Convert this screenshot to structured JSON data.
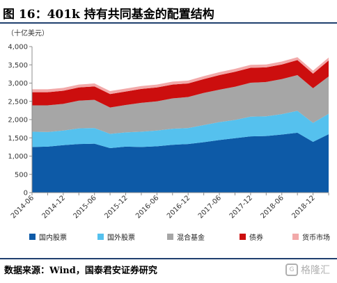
{
  "figure": {
    "title": "图 16：401k 持有共同基金的配置结构",
    "unit": "（十亿美元）",
    "source": "数据来源：Wind，国泰君安证券研究",
    "watermark": "格隆汇"
  },
  "colors": {
    "domestic_equity": "#0d5aa7",
    "foreign_equity": "#55c1ee",
    "hybrid_fund": "#a6a6a6",
    "bond": "#cc0e0e",
    "money_market": "#f2a9a9",
    "rule": "#1f3f6e"
  },
  "chart_data": {
    "type": "area",
    "stacked": true,
    "ylim": [
      0,
      4000
    ],
    "yticks": [
      0,
      500,
      1000,
      1500,
      2000,
      2500,
      3000,
      3500,
      4000
    ],
    "ytick_labels": [
      "0",
      "500",
      "1,000",
      "1,500",
      "2,000",
      "2,500",
      "3,000",
      "3,500",
      "4,000"
    ],
    "xtick_labels": [
      "2014-06",
      "2014-12",
      "2015-06",
      "2015-12",
      "2016-06",
      "2016-12",
      "2017-06",
      "2017-12",
      "2018-06",
      "2018-12"
    ],
    "x": [
      "2014-06",
      "2014-09",
      "2014-12",
      "2015-03",
      "2015-06",
      "2015-09",
      "2015-12",
      "2016-03",
      "2016-06",
      "2016-09",
      "2016-12",
      "2017-03",
      "2017-06",
      "2017-09",
      "2017-12",
      "2018-03",
      "2018-06",
      "2018-09",
      "2018-12",
      "2019-03"
    ],
    "grid": false,
    "legend_position": "bottom",
    "series": [
      {
        "name": "国内股票",
        "color_key": "domestic_equity",
        "values": [
          1250,
          1260,
          1300,
          1330,
          1340,
          1220,
          1260,
          1250,
          1270,
          1310,
          1330,
          1380,
          1440,
          1490,
          1540,
          1550,
          1590,
          1640,
          1390,
          1600
        ]
      },
      {
        "name": "国外股票",
        "color_key": "foreign_equity",
        "values": [
          420,
          400,
          400,
          430,
          430,
          390,
          390,
          420,
          430,
          440,
          440,
          470,
          490,
          500,
          540,
          540,
          560,
          600,
          520,
          560
        ]
      },
      {
        "name": "混合基金",
        "color_key": "hybrid_fund",
        "values": [
          720,
          730,
          730,
          760,
          770,
          720,
          750,
          790,
          800,
          830,
          850,
          880,
          890,
          910,
          930,
          940,
          960,
          980,
          950,
          1020
        ]
      },
      {
        "name": "债券",
        "color_key": "bond",
        "values": [
          360,
          360,
          360,
          360,
          370,
          370,
          370,
          380,
          380,
          380,
          370,
          380,
          400,
          410,
          410,
          400,
          400,
          410,
          400,
          440
        ]
      },
      {
        "name": "货币市场",
        "color_key": "money_market",
        "values": [
          80,
          80,
          80,
          80,
          80,
          80,
          80,
          80,
          80,
          80,
          80,
          80,
          80,
          80,
          80,
          80,
          80,
          80,
          80,
          80
        ]
      }
    ]
  }
}
